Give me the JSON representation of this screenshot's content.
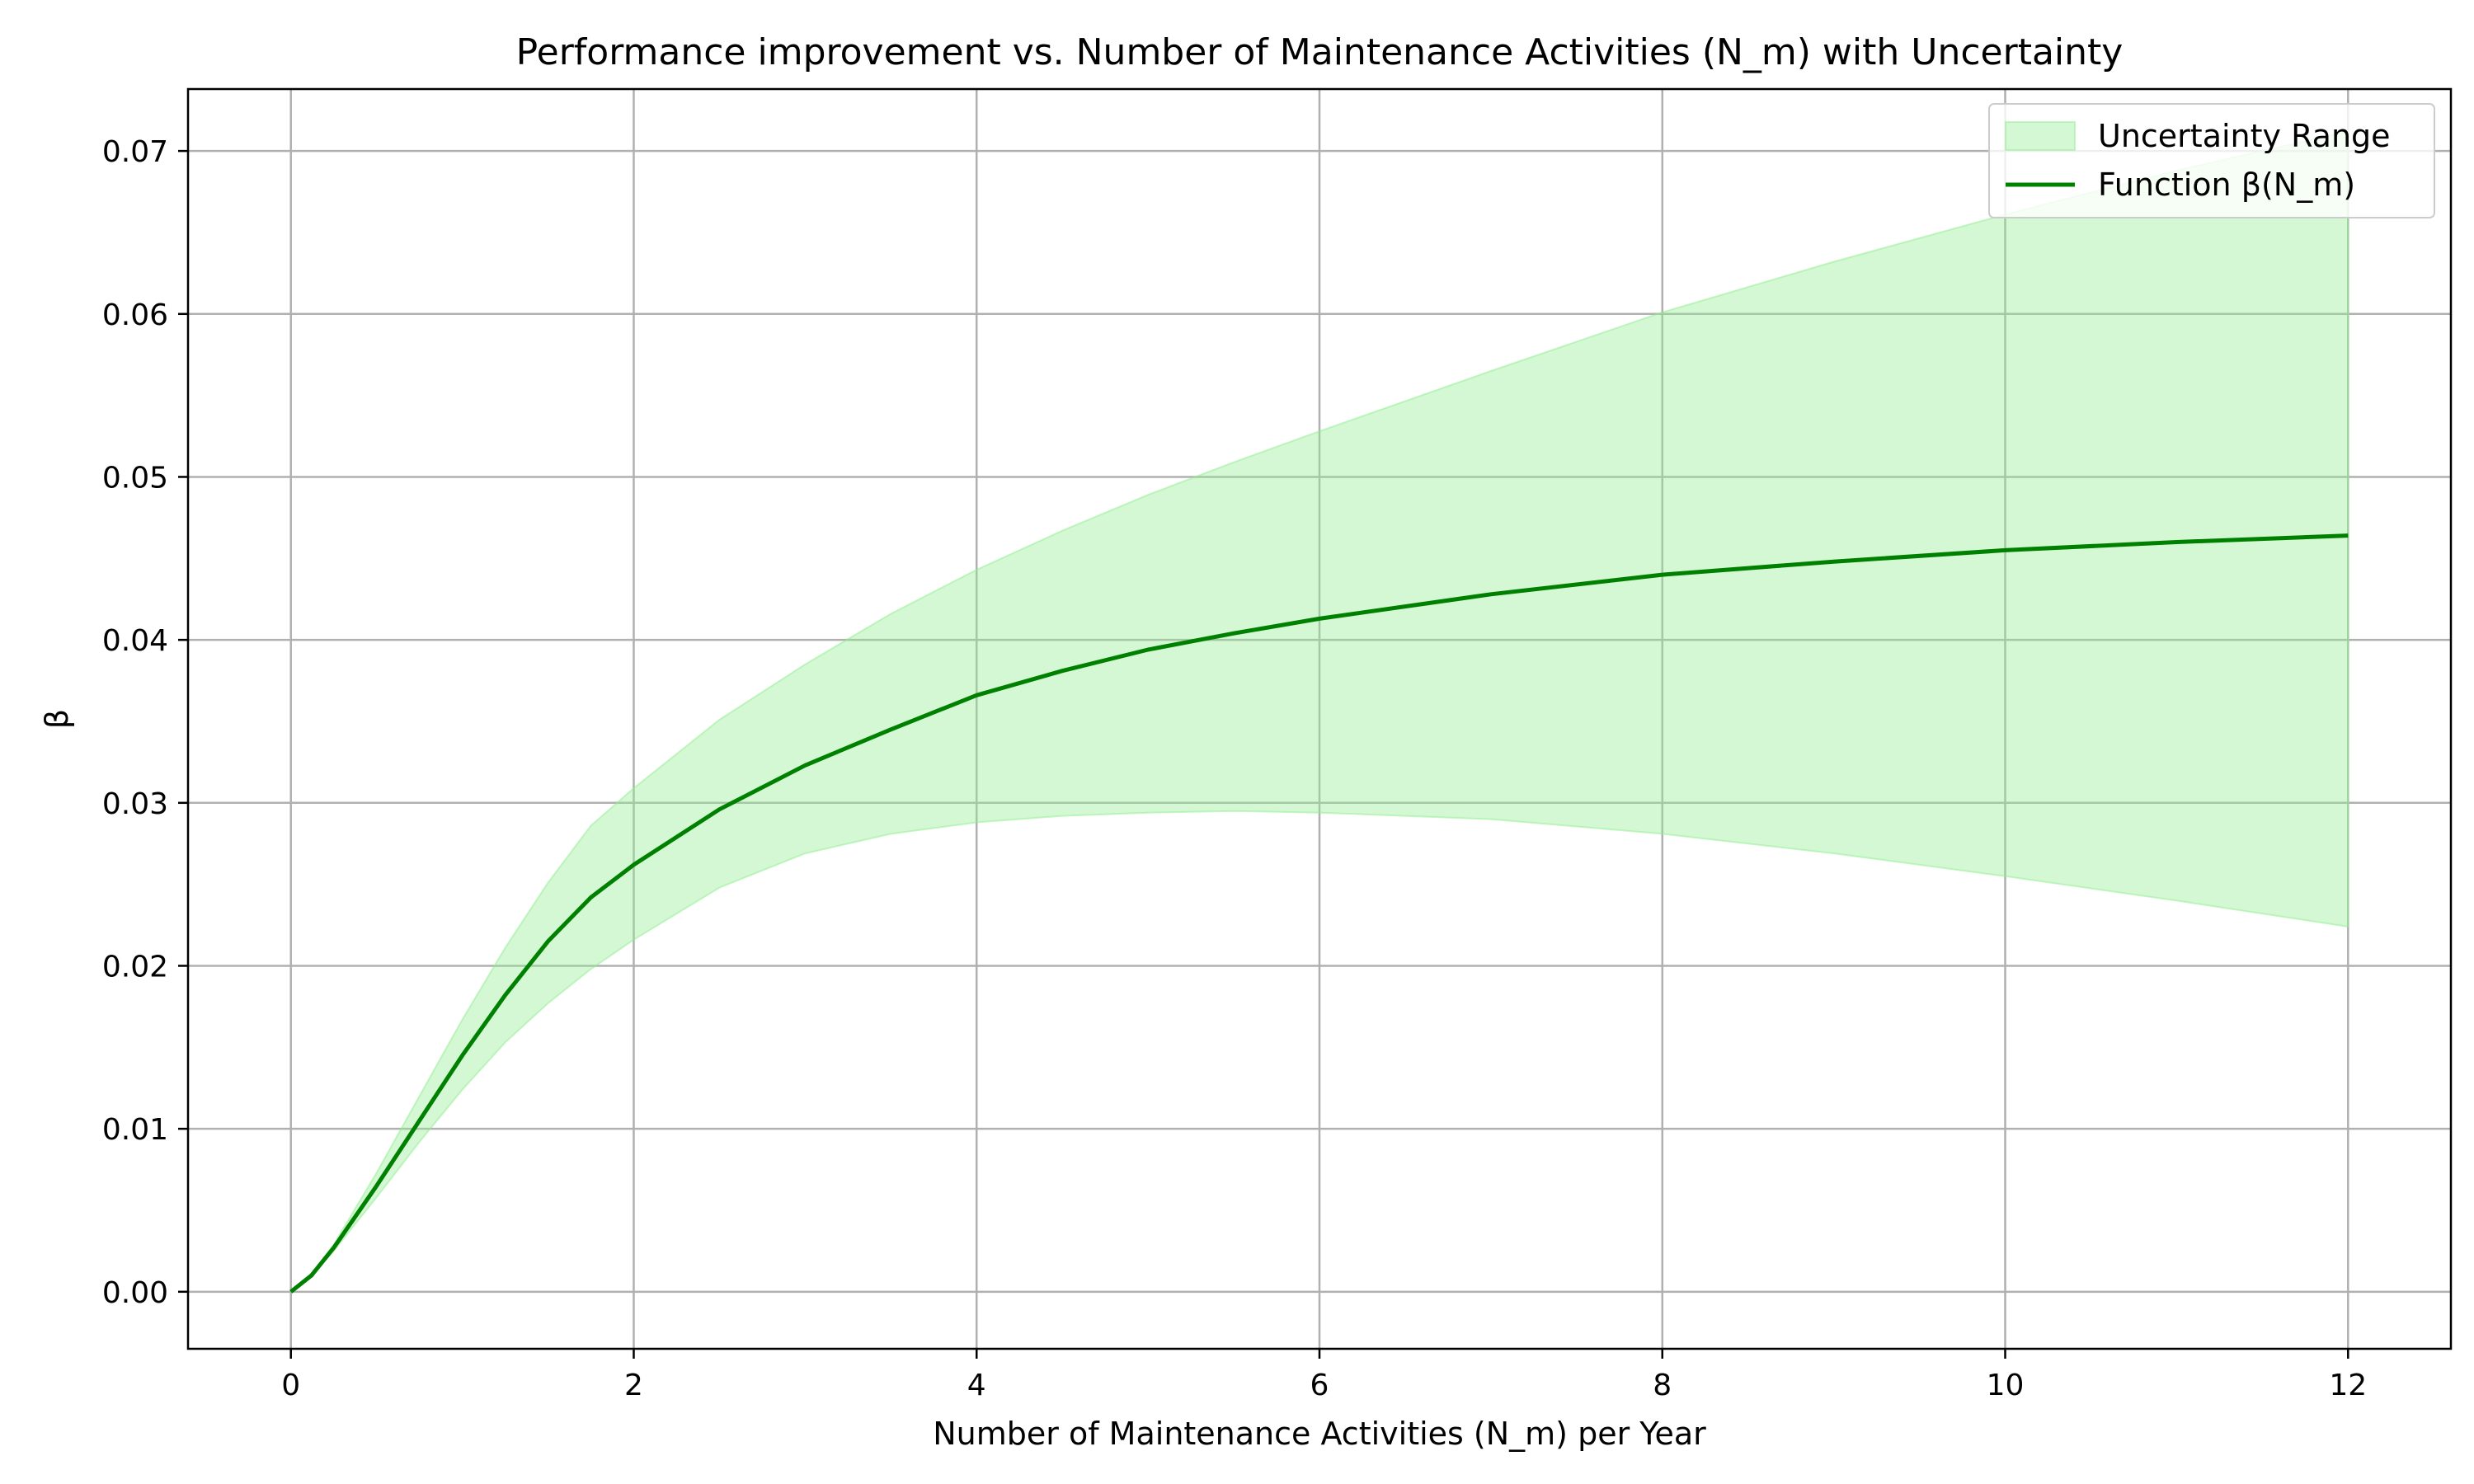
{
  "chart_data": {
    "type": "line",
    "title": "Performance improvement vs. Number of Maintenance Activities (N_m) with Uncertainty",
    "xlabel": "Number of Maintenance Activities (N_m) per Year",
    "ylabel": "β",
    "xlim": [
      -0.6,
      12.6
    ],
    "ylim": [
      -0.0035,
      0.0738
    ],
    "xticks": [
      0,
      2,
      4,
      6,
      8,
      10,
      12
    ],
    "yticks": [
      0.0,
      0.01,
      0.02,
      0.03,
      0.04,
      0.05,
      0.06,
      0.07
    ],
    "xtick_labels": [
      "0",
      "2",
      "4",
      "6",
      "8",
      "10",
      "12"
    ],
    "ytick_labels": [
      "0.00",
      "0.01",
      "0.02",
      "0.03",
      "0.04",
      "0.05",
      "0.06",
      "0.07"
    ],
    "grid": true,
    "legend_position": "top-right",
    "series": [
      {
        "name": "Function β(N_m)",
        "kind": "line",
        "color": "#008000",
        "x": [
          0,
          0.12,
          0.25,
          0.5,
          0.75,
          1,
          1.25,
          1.5,
          1.75,
          2,
          2.5,
          3,
          3.5,
          4,
          4.5,
          5,
          5.5,
          6,
          7,
          8,
          9,
          10,
          11,
          12
        ],
        "y": [
          0.0,
          0.001,
          0.0027,
          0.0065,
          0.0105,
          0.0145,
          0.0182,
          0.0215,
          0.0242,
          0.0262,
          0.0296,
          0.0323,
          0.0345,
          0.0366,
          0.0381,
          0.0394,
          0.0404,
          0.0413,
          0.0428,
          0.044,
          0.0448,
          0.0455,
          0.046,
          0.0464
        ]
      },
      {
        "name": "Uncertainty Range",
        "kind": "band",
        "color": "#90ee90",
        "x": [
          0,
          0.12,
          0.25,
          0.5,
          0.75,
          1,
          1.25,
          1.5,
          1.75,
          2,
          2.5,
          3,
          3.5,
          4,
          4.5,
          5,
          5.5,
          6,
          7,
          8,
          9,
          10,
          11,
          12
        ],
        "lower": [
          0.0,
          0.001,
          0.0025,
          0.0058,
          0.0092,
          0.0124,
          0.0153,
          0.0177,
          0.0198,
          0.0216,
          0.0248,
          0.0269,
          0.0281,
          0.0288,
          0.0292,
          0.0294,
          0.0295,
          0.0294,
          0.029,
          0.0281,
          0.0269,
          0.0255,
          0.024,
          0.0224
        ],
        "upper": [
          0.0,
          0.0011,
          0.0029,
          0.0073,
          0.012,
          0.0167,
          0.0211,
          0.0251,
          0.0286,
          0.0309,
          0.0351,
          0.0385,
          0.0416,
          0.0443,
          0.0467,
          0.0489,
          0.0509,
          0.0528,
          0.0565,
          0.0601,
          0.0632,
          0.0661,
          0.0688,
          0.0712
        ]
      }
    ],
    "legend": [
      {
        "label": "Uncertainty Range",
        "kind": "band",
        "color": "#90ee90"
      },
      {
        "label": "Function β(N_m)",
        "kind": "line",
        "color": "#008000"
      }
    ]
  }
}
